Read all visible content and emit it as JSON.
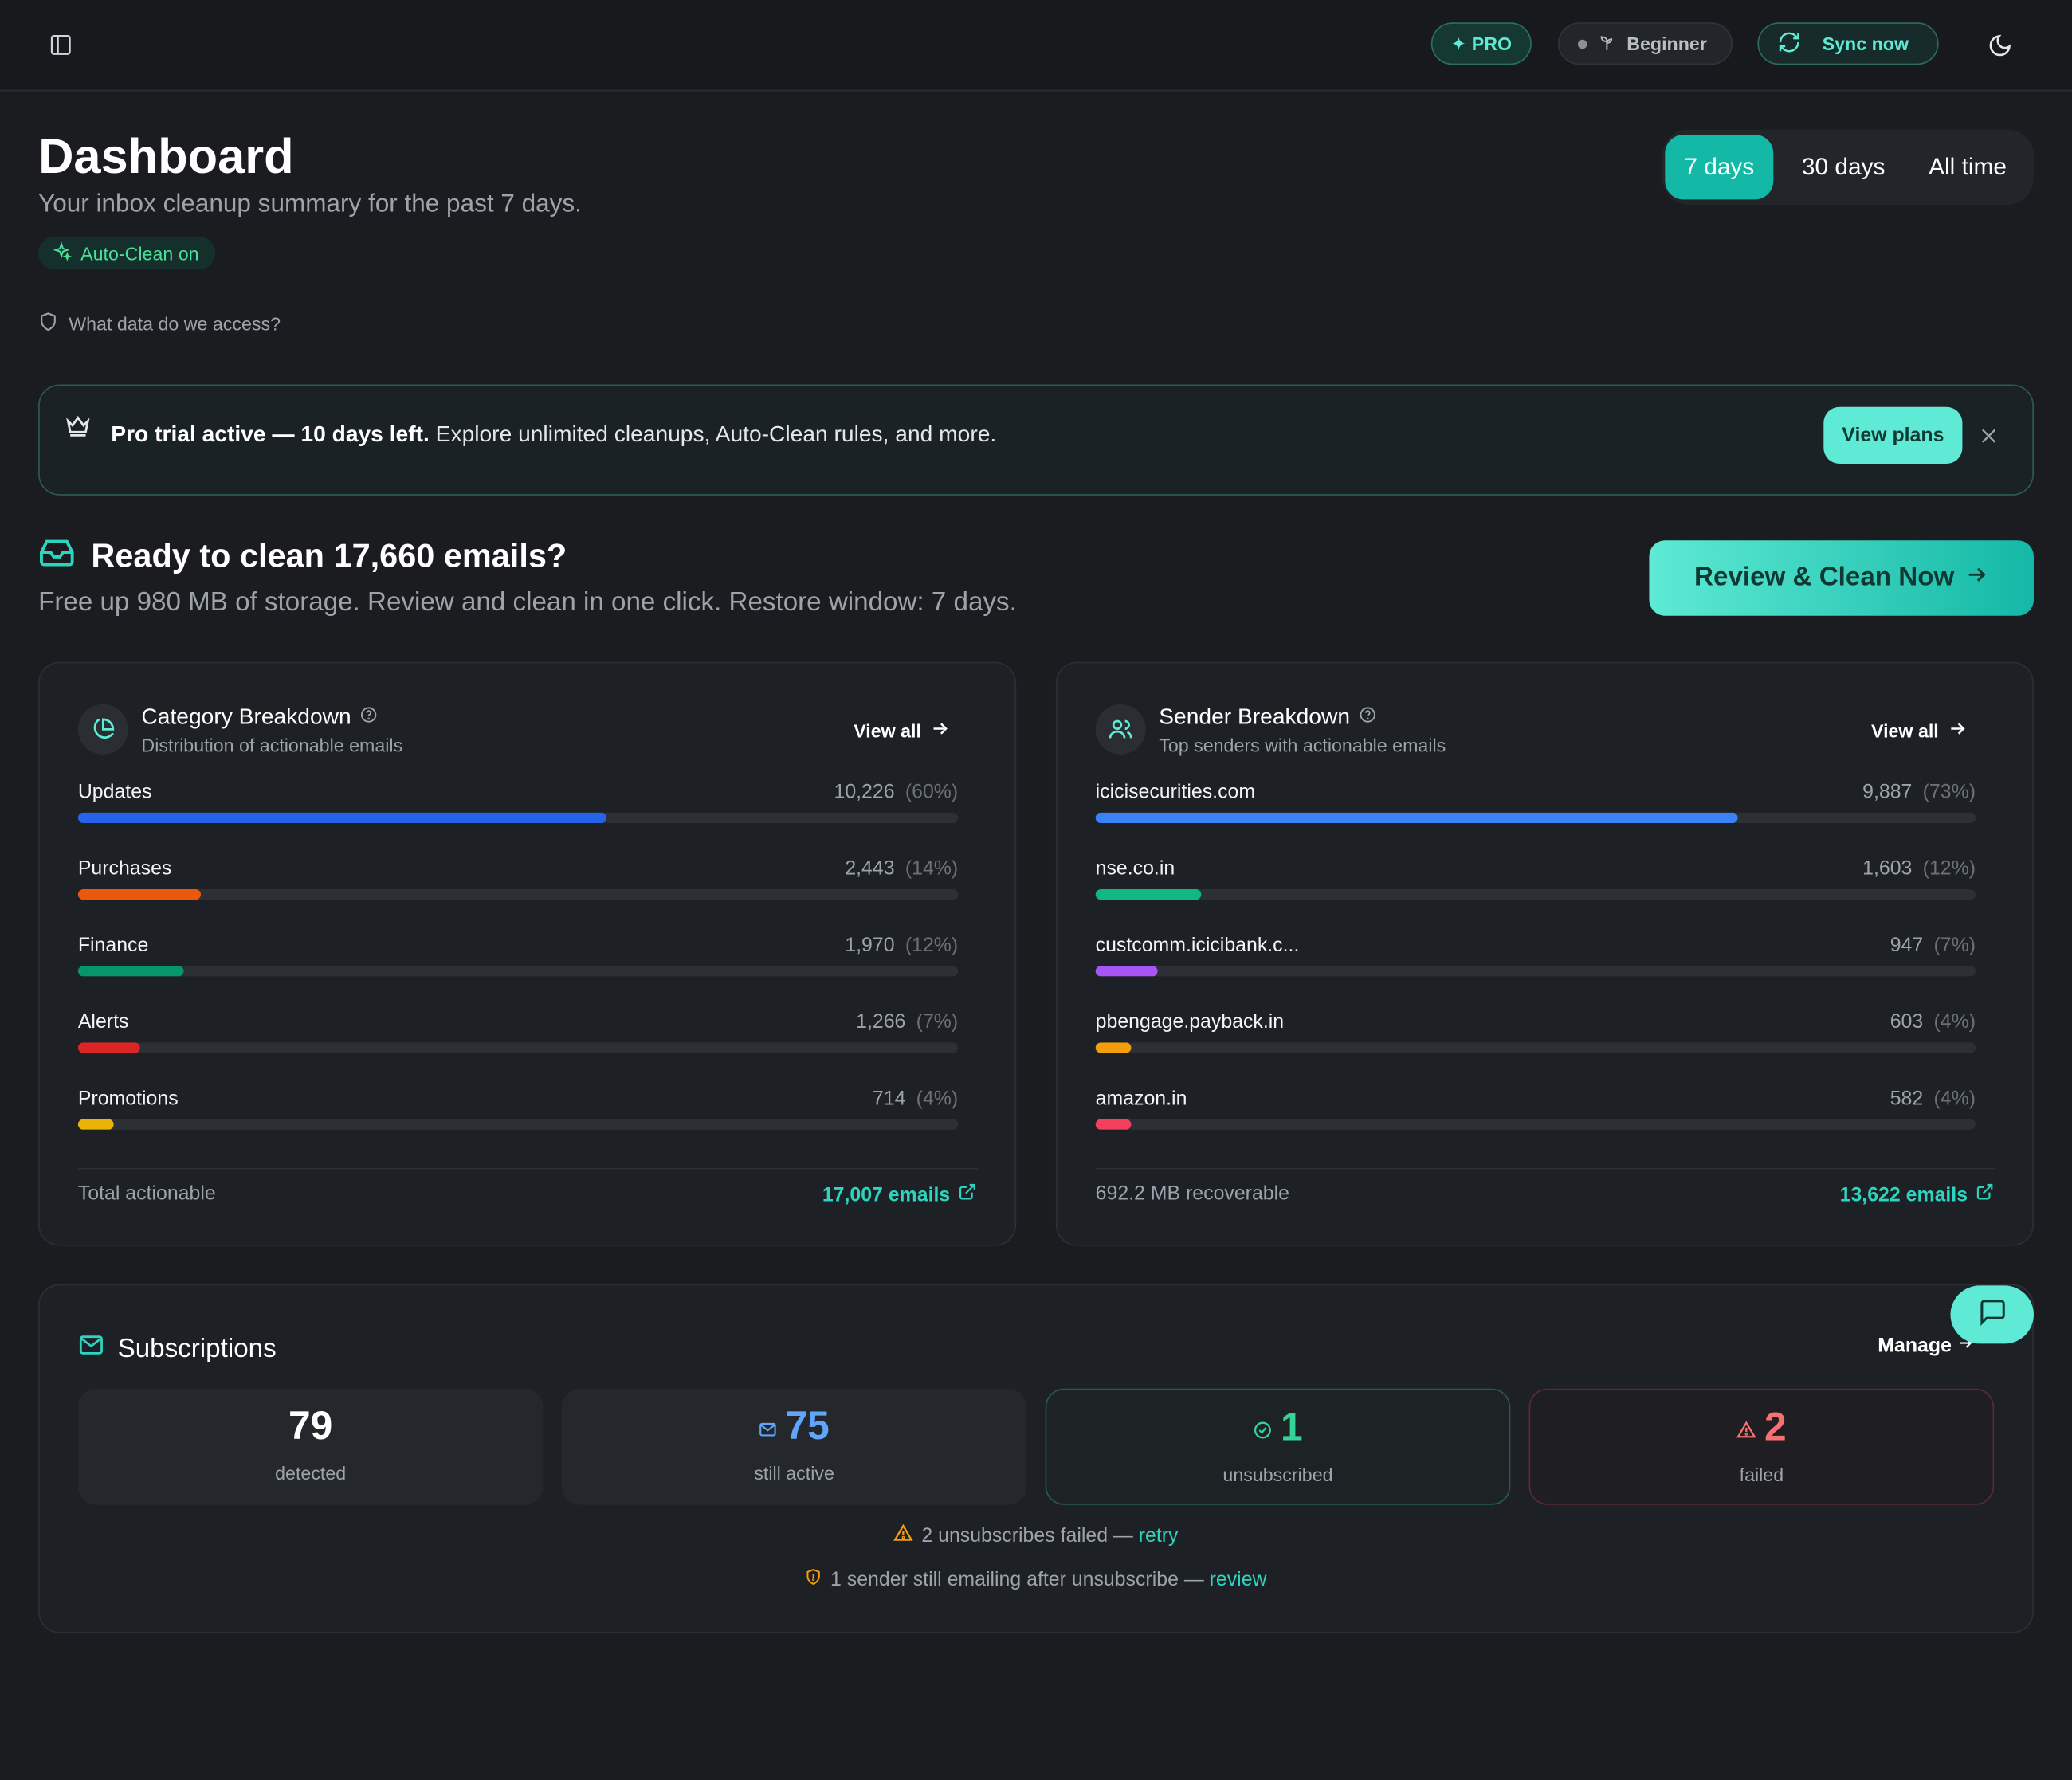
{
  "topbar": {
    "pro_label": "PRO",
    "level_label": "Beginner",
    "sync_label": "Sync now"
  },
  "header": {
    "title": "Dashboard",
    "subtitle": "Your inbox cleanup summary for the past 7 days.",
    "autoclean_label": "Auto-Clean on",
    "data_access_link": "What data do we access?",
    "ranges": [
      "7 days",
      "30 days",
      "All time"
    ],
    "active_range": "7 days"
  },
  "trial_banner": {
    "bold_text": "Pro trial active — 10 days left.",
    "text": " Explore unlimited cleanups, Auto-Clean rules, and more.",
    "button_label": "View plans"
  },
  "ready": {
    "title": "Ready to clean 17,660 emails?",
    "subtitle": "Free up 980 MB of storage. Review and clean in one click. Restore window: 7 days.",
    "button_label": "Review & Clean Now"
  },
  "category_breakdown": {
    "title": "Category Breakdown",
    "subtitle": "Distribution of actionable emails",
    "view_all": "View all",
    "rows": [
      {
        "label": "Updates",
        "value": "10,226",
        "pct": "(60%)",
        "fraction": 0.6,
        "color": "#2563eb"
      },
      {
        "label": "Purchases",
        "value": "2,443",
        "pct": "(14%)",
        "fraction": 0.14,
        "color": "#ea580c"
      },
      {
        "label": "Finance",
        "value": "1,970",
        "pct": "(12%)",
        "fraction": 0.12,
        "color": "#059669"
      },
      {
        "label": "Alerts",
        "value": "1,266",
        "pct": "(7%)",
        "fraction": 0.07,
        "color": "#dc2626"
      },
      {
        "label": "Promotions",
        "value": "714",
        "pct": "(4%)",
        "fraction": 0.04,
        "color": "#eab308"
      }
    ],
    "footer_left": "Total actionable",
    "footer_right": "17,007 emails"
  },
  "sender_breakdown": {
    "title": "Sender Breakdown",
    "subtitle": "Top senders with actionable emails",
    "view_all": "View all",
    "rows": [
      {
        "label": "icicisecurities.com",
        "value": "9,887",
        "pct": "(73%)",
        "fraction": 0.73,
        "color": "#3b82f6"
      },
      {
        "label": "nse.co.in",
        "value": "1,603",
        "pct": "(12%)",
        "fraction": 0.12,
        "color": "#10b981"
      },
      {
        "label": "custcomm.icicibank.c...",
        "value": "947",
        "pct": "(7%)",
        "fraction": 0.07,
        "color": "#a855f7"
      },
      {
        "label": "pbengage.payback.in",
        "value": "603",
        "pct": "(4%)",
        "fraction": 0.04,
        "color": "#f59e0b"
      },
      {
        "label": "amazon.in",
        "value": "582",
        "pct": "(4%)",
        "fraction": 0.04,
        "color": "#f43f5e"
      }
    ],
    "footer_left": "692.2 MB recoverable",
    "footer_right": "13,622 emails"
  },
  "subscriptions": {
    "title": "Subscriptions",
    "manage_label": "Manage",
    "stats": [
      {
        "value": "79",
        "label": "detected",
        "color": "#ffffff"
      },
      {
        "value": "75",
        "label": "still active",
        "color": "#60a5fa"
      },
      {
        "value": "1",
        "label": "unsubscribed",
        "color": "#34d399"
      },
      {
        "value": "2",
        "label": "failed",
        "color": "#f87171"
      }
    ],
    "notice1_text": "2 unsubscribes failed — ",
    "notice1_link": "retry",
    "notice2_text": "1 sender still emailing after unsubscribe — ",
    "notice2_link": "review"
  }
}
